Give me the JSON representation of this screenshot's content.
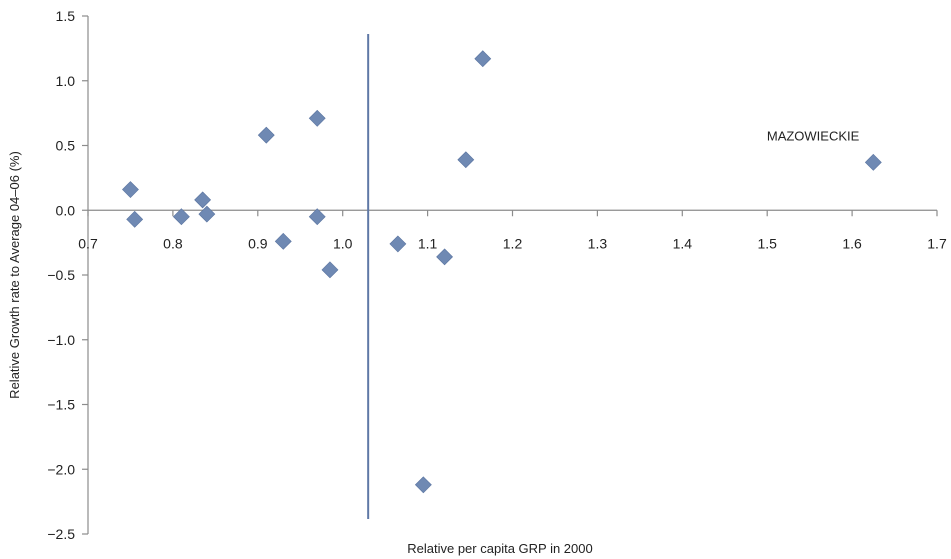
{
  "chart_data": {
    "type": "scatter",
    "title": "",
    "xlabel": "Relative per capita GRP in 2000",
    "ylabel": "Relative Growth rate to Average 04–06 (%)",
    "xlim": [
      0.7,
      1.7
    ],
    "ylim": [
      -2.5,
      1.5
    ],
    "xticks": [
      "0.7",
      "0.8",
      "0.9",
      "1.0",
      "1.1",
      "1.2",
      "1.3",
      "1.4",
      "1.5",
      "1.6",
      "1.7"
    ],
    "yticks": [
      "1.5",
      "1.0",
      "0.5",
      "0.0",
      "−0.5",
      "−1.0",
      "−1.5",
      "−2.0",
      "−2.5"
    ],
    "grid": false,
    "legend": "none",
    "marker": "diamond",
    "marker_color": "#6f89b3",
    "reference_line_x": 1.03,
    "points": [
      {
        "x": 0.75,
        "y": 0.16
      },
      {
        "x": 0.755,
        "y": -0.07
      },
      {
        "x": 0.81,
        "y": -0.05
      },
      {
        "x": 0.835,
        "y": 0.08
      },
      {
        "x": 0.84,
        "y": -0.03
      },
      {
        "x": 0.91,
        "y": 0.58
      },
      {
        "x": 0.93,
        "y": -0.24
      },
      {
        "x": 0.97,
        "y": 0.71
      },
      {
        "x": 0.97,
        "y": -0.05
      },
      {
        "x": 0.985,
        "y": -0.46
      },
      {
        "x": 1.065,
        "y": -0.26
      },
      {
        "x": 1.095,
        "y": -2.12
      },
      {
        "x": 1.12,
        "y": -0.36
      },
      {
        "x": 1.145,
        "y": 0.39
      },
      {
        "x": 1.165,
        "y": 1.17
      },
      {
        "x": 1.625,
        "y": 0.37
      }
    ],
    "annotations": [
      {
        "text": "MAZOWIECKIE",
        "x": 1.625,
        "y": 0.37
      }
    ]
  }
}
